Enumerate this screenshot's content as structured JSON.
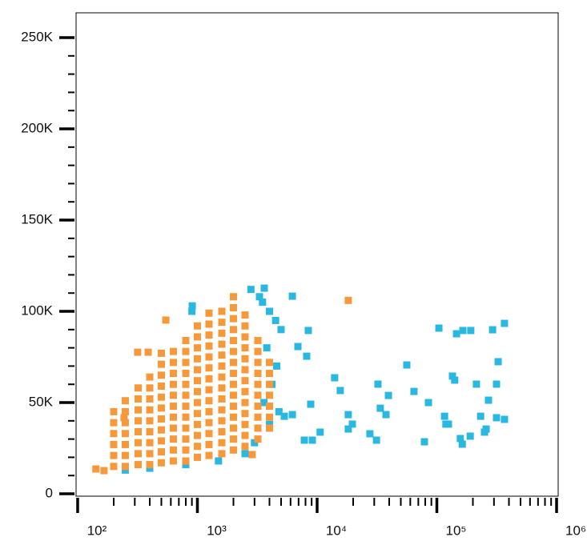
{
  "chart_data": {
    "type": "scatter",
    "xscale": "log",
    "xlim": [
      97,
      1031000
    ],
    "ylim": [
      -1300,
      263600
    ],
    "xticks": [
      {
        "value": 100,
        "label": "10²"
      },
      {
        "value": 1000,
        "label": "10³"
      },
      {
        "value": 10000,
        "label": "10⁴"
      },
      {
        "value": 100000,
        "label": "10⁵"
      },
      {
        "value": 1000000,
        "label": "10⁶"
      }
    ],
    "xminorticks": [
      200,
      300,
      400,
      500,
      600,
      700,
      800,
      900,
      2000,
      3000,
      4000,
      5000,
      6000,
      7000,
      8000,
      9000,
      20000,
      30000,
      40000,
      50000,
      60000,
      70000,
      80000,
      90000,
      200000,
      300000,
      400000,
      500000,
      600000,
      700000,
      800000,
      900000
    ],
    "yticks": [
      {
        "value": 0,
        "label": "0"
      },
      {
        "value": 50000,
        "label": "50K"
      },
      {
        "value": 100000,
        "label": "100K"
      },
      {
        "value": 150000,
        "label": "150K"
      },
      {
        "value": 200000,
        "label": "200K"
      },
      {
        "value": 250000,
        "label": "250K"
      }
    ],
    "yminorticks": [
      10000,
      20000,
      30000,
      40000,
      60000,
      70000,
      80000,
      90000,
      110000,
      120000,
      130000,
      140000,
      160000,
      170000,
      180000,
      190000,
      210000,
      220000,
      230000,
      240000
    ],
    "series": [
      {
        "color": "#2bb8e0",
        "x": [
          906,
          3620,
          6210,
          8440,
          6910,
          8180,
          14000,
          15600,
          18200,
          19700,
          8840,
          6210,
          5320,
          7820,
          9120,
          10600,
          18200,
          27600,
          31300,
          32200,
          33700,
          37600,
          39400,
          56100,
          64400,
          78700,
          85100,
          104000,
          116000,
          119000,
          125000,
          135000,
          141000,
          146000,
          157000,
          163000,
          165000,
          190000,
          192000,
          214000,
          232000,
          250000,
          258000,
          270000,
          292000,
          315000,
          315000,
          325000,
          367000,
          367000,
          3500,
          4000,
          4500,
          3800,
          4200,
          4800,
          4000,
          3000,
          2500,
          1500,
          800,
          400,
          250,
          5000,
          4600,
          3600,
          900,
          2800,
          3300
        ],
        "y": [
          103000,
          112700,
          108300,
          89500,
          80700,
          75400,
          63600,
          56600,
          43400,
          38200,
          49100,
          43400,
          42500,
          29400,
          29400,
          33800,
          35500,
          32900,
          29400,
          60100,
          46900,
          43400,
          53900,
          70600,
          56100,
          28500,
          50000,
          90800,
          42500,
          38200,
          38200,
          64500,
          62300,
          87700,
          30300,
          27200,
          89500,
          31600,
          89500,
          60100,
          42500,
          33800,
          35500,
          51300,
          89900,
          41700,
          60100,
          72400,
          93400,
          40800,
          105000,
          100000,
          95000,
          80000,
          60000,
          45000,
          38000,
          28000,
          22000,
          18000,
          16000,
          14000,
          13000,
          90000,
          70000,
          50000,
          100000,
          112000,
          108000
        ]
      },
      {
        "color": "#f7993a",
        "x": [
          200,
          200,
          200,
          200,
          200,
          200,
          250,
          250,
          250,
          250,
          250,
          250,
          250,
          320,
          320,
          320,
          320,
          320,
          320,
          320,
          320,
          400,
          400,
          400,
          400,
          400,
          400,
          400,
          400,
          400,
          500,
          500,
          500,
          500,
          500,
          500,
          500,
          500,
          500,
          500,
          500,
          630,
          630,
          630,
          630,
          630,
          630,
          630,
          630,
          630,
          630,
          630,
          800,
          800,
          800,
          800,
          800,
          800,
          800,
          800,
          800,
          800,
          800,
          800,
          1000,
          1000,
          1000,
          1000,
          1000,
          1000,
          1000,
          1000,
          1000,
          1000,
          1000,
          1000,
          1000,
          1250,
          1250,
          1250,
          1250,
          1250,
          1250,
          1250,
          1250,
          1250,
          1250,
          1250,
          1250,
          1250,
          1250,
          1600,
          1600,
          1600,
          1600,
          1600,
          1600,
          1600,
          1600,
          1600,
          1600,
          1600,
          1600,
          1600,
          1600,
          2000,
          2000,
          2000,
          2000,
          2000,
          2000,
          2000,
          2000,
          2000,
          2000,
          2000,
          2000,
          2000,
          2000,
          2000,
          2500,
          2500,
          2500,
          2500,
          2500,
          2500,
          2500,
          2500,
          2500,
          2500,
          2500,
          2500,
          2500,
          3200,
          3200,
          3200,
          3200,
          3200,
          3200,
          3200,
          3200,
          3200,
          3200,
          4000,
          4000,
          4000,
          4000,
          4000,
          4000,
          4000,
          18200,
          317,
          388,
          244,
          142,
          166,
          2870,
          545
        ],
        "y": [
          15000,
          21000,
          27000,
          33000,
          39000,
          45000,
          15000,
          21000,
          27000,
          33000,
          39000,
          45000,
          51000,
          16000,
          22000,
          28000,
          34000,
          40000,
          46000,
          52000,
          58000,
          16000,
          22000,
          28000,
          34000,
          40000,
          46000,
          52000,
          58000,
          64000,
          17000,
          23000,
          29000,
          35000,
          41000,
          47000,
          53000,
          59000,
          65000,
          71000,
          77000,
          18000,
          24000,
          30000,
          36000,
          42000,
          48000,
          54000,
          60000,
          66000,
          72000,
          78000,
          18000,
          24000,
          30000,
          36000,
          42000,
          48000,
          54000,
          60000,
          66000,
          72000,
          78000,
          84000,
          20000,
          26000,
          32000,
          38000,
          44000,
          50000,
          56000,
          62000,
          68000,
          74000,
          80000,
          86000,
          92000,
          21000,
          27000,
          33000,
          39000,
          45000,
          51000,
          57000,
          63000,
          69000,
          75000,
          81000,
          87000,
          93000,
          99000,
          22000,
          28000,
          34000,
          40000,
          46000,
          52000,
          58000,
          64000,
          70000,
          76000,
          82000,
          88000,
          94000,
          100000,
          24000,
          30000,
          36000,
          42000,
          48000,
          54000,
          60000,
          66000,
          72000,
          78000,
          84000,
          90000,
          96000,
          102000,
          108000,
          26000,
          32000,
          38000,
          44000,
          50000,
          56000,
          62000,
          68000,
          74000,
          80000,
          86000,
          92000,
          98000,
          30000,
          36000,
          42000,
          48000,
          54000,
          60000,
          66000,
          72000,
          78000,
          84000,
          36000,
          42000,
          48000,
          54000,
          60000,
          66000,
          72000,
          106000,
          77600,
          77600,
          41700,
          13600,
          12700,
          21500,
          95200
        ]
      }
    ]
  }
}
